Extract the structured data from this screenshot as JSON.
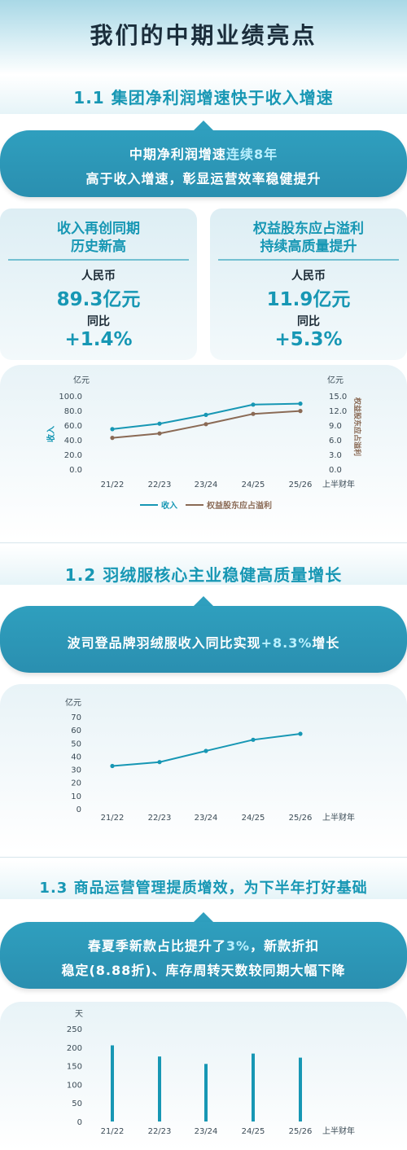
{
  "header": {
    "title": "我们的中期业绩亮点"
  },
  "section1": {
    "title": "1.1 集团净利润增速快于收入增速",
    "banner_line1_a": "中期净利润增速",
    "banner_line1_b": "连续8年",
    "banner_line2": "高于收入增速，彰显运营效率稳健提升",
    "card_left": {
      "title1": "收入再创同期",
      "title2": "历史新高",
      "label1": "人民币",
      "value1": "89.3亿元",
      "label2": "同比",
      "value2": "+1.4%"
    },
    "card_right": {
      "title1": "权益股东应占溢利",
      "title2": "持续高质量提升",
      "label1": "人民币",
      "value1": "11.9亿元",
      "label2": "同比",
      "value2": "+5.3%"
    }
  },
  "section2": {
    "title": "1.2 羽绒服核心主业稳健高质量增长",
    "banner_a": "波司登品牌羽绒服收入同比实现",
    "banner_b": "+8.3%",
    "banner_c": "增长"
  },
  "section3": {
    "title": "1.3 商品运营管理提质增效，为下半年打好基础",
    "banner_line1_a": "春夏季新款占比提升了",
    "banner_line1_b": "3%",
    "banner_line1_c": "，新款折扣",
    "banner_line2": "稳定(8.88折)、库存周转天数较同期大幅下降"
  },
  "colors": {
    "teal": "#1797b4",
    "brown": "#8a6a55",
    "banner": "#2f9fbe"
  },
  "chart_data": [
    {
      "type": "line",
      "categories": [
        "21/22",
        "22/23",
        "23/24",
        "24/25",
        "25/26"
      ],
      "x_suffix": "上半财年",
      "left_unit": "亿元",
      "right_unit": "亿元",
      "left_axis_label": "收入",
      "right_axis_label": "权益股东应占溢利",
      "left_ticks": [
        "100.0",
        "80.0",
        "60.0",
        "40.0",
        "20.0",
        "0.0"
      ],
      "right_ticks": [
        "15.0",
        "12.0",
        "9.0",
        "6.0",
        "3.0",
        "0.0"
      ],
      "ylim_left": [
        0,
        100
      ],
      "ylim_right": [
        0,
        15
      ],
      "series": [
        {
          "name": "收入",
          "axis": "left",
          "color": "#1797b4",
          "values": [
            54.5,
            62.0,
            74.0,
            88.0,
            89.3
          ]
        },
        {
          "name": "权益股东应占溢利",
          "axis": "right",
          "color": "#8a6a55",
          "values": [
            6.4,
            7.3,
            9.2,
            11.3,
            11.9
          ]
        }
      ],
      "legend_placement": "bottom-center",
      "grid": false
    },
    {
      "type": "line",
      "categories": [
        "21/22",
        "22/23",
        "23/24",
        "24/25",
        "25/26"
      ],
      "x_suffix": "上半财年",
      "unit": "亿元",
      "ticks": [
        "70",
        "60",
        "50",
        "40",
        "30",
        "20",
        "10",
        "0"
      ],
      "ylim": [
        0,
        70
      ],
      "series": [
        {
          "color": "#1797b4",
          "values": [
            32.5,
            35.5,
            44.0,
            52.5,
            57.0
          ]
        }
      ],
      "grid": false
    },
    {
      "type": "bar",
      "categories": [
        "21/22",
        "22/23",
        "23/24",
        "24/25",
        "25/26"
      ],
      "x_suffix": "上半财年",
      "unit": "天",
      "ticks": [
        "250",
        "200",
        "150",
        "100",
        "50",
        "0"
      ],
      "ylim": [
        0,
        250
      ],
      "values": [
        205,
        175,
        155,
        183,
        172
      ],
      "grid": false
    }
  ]
}
